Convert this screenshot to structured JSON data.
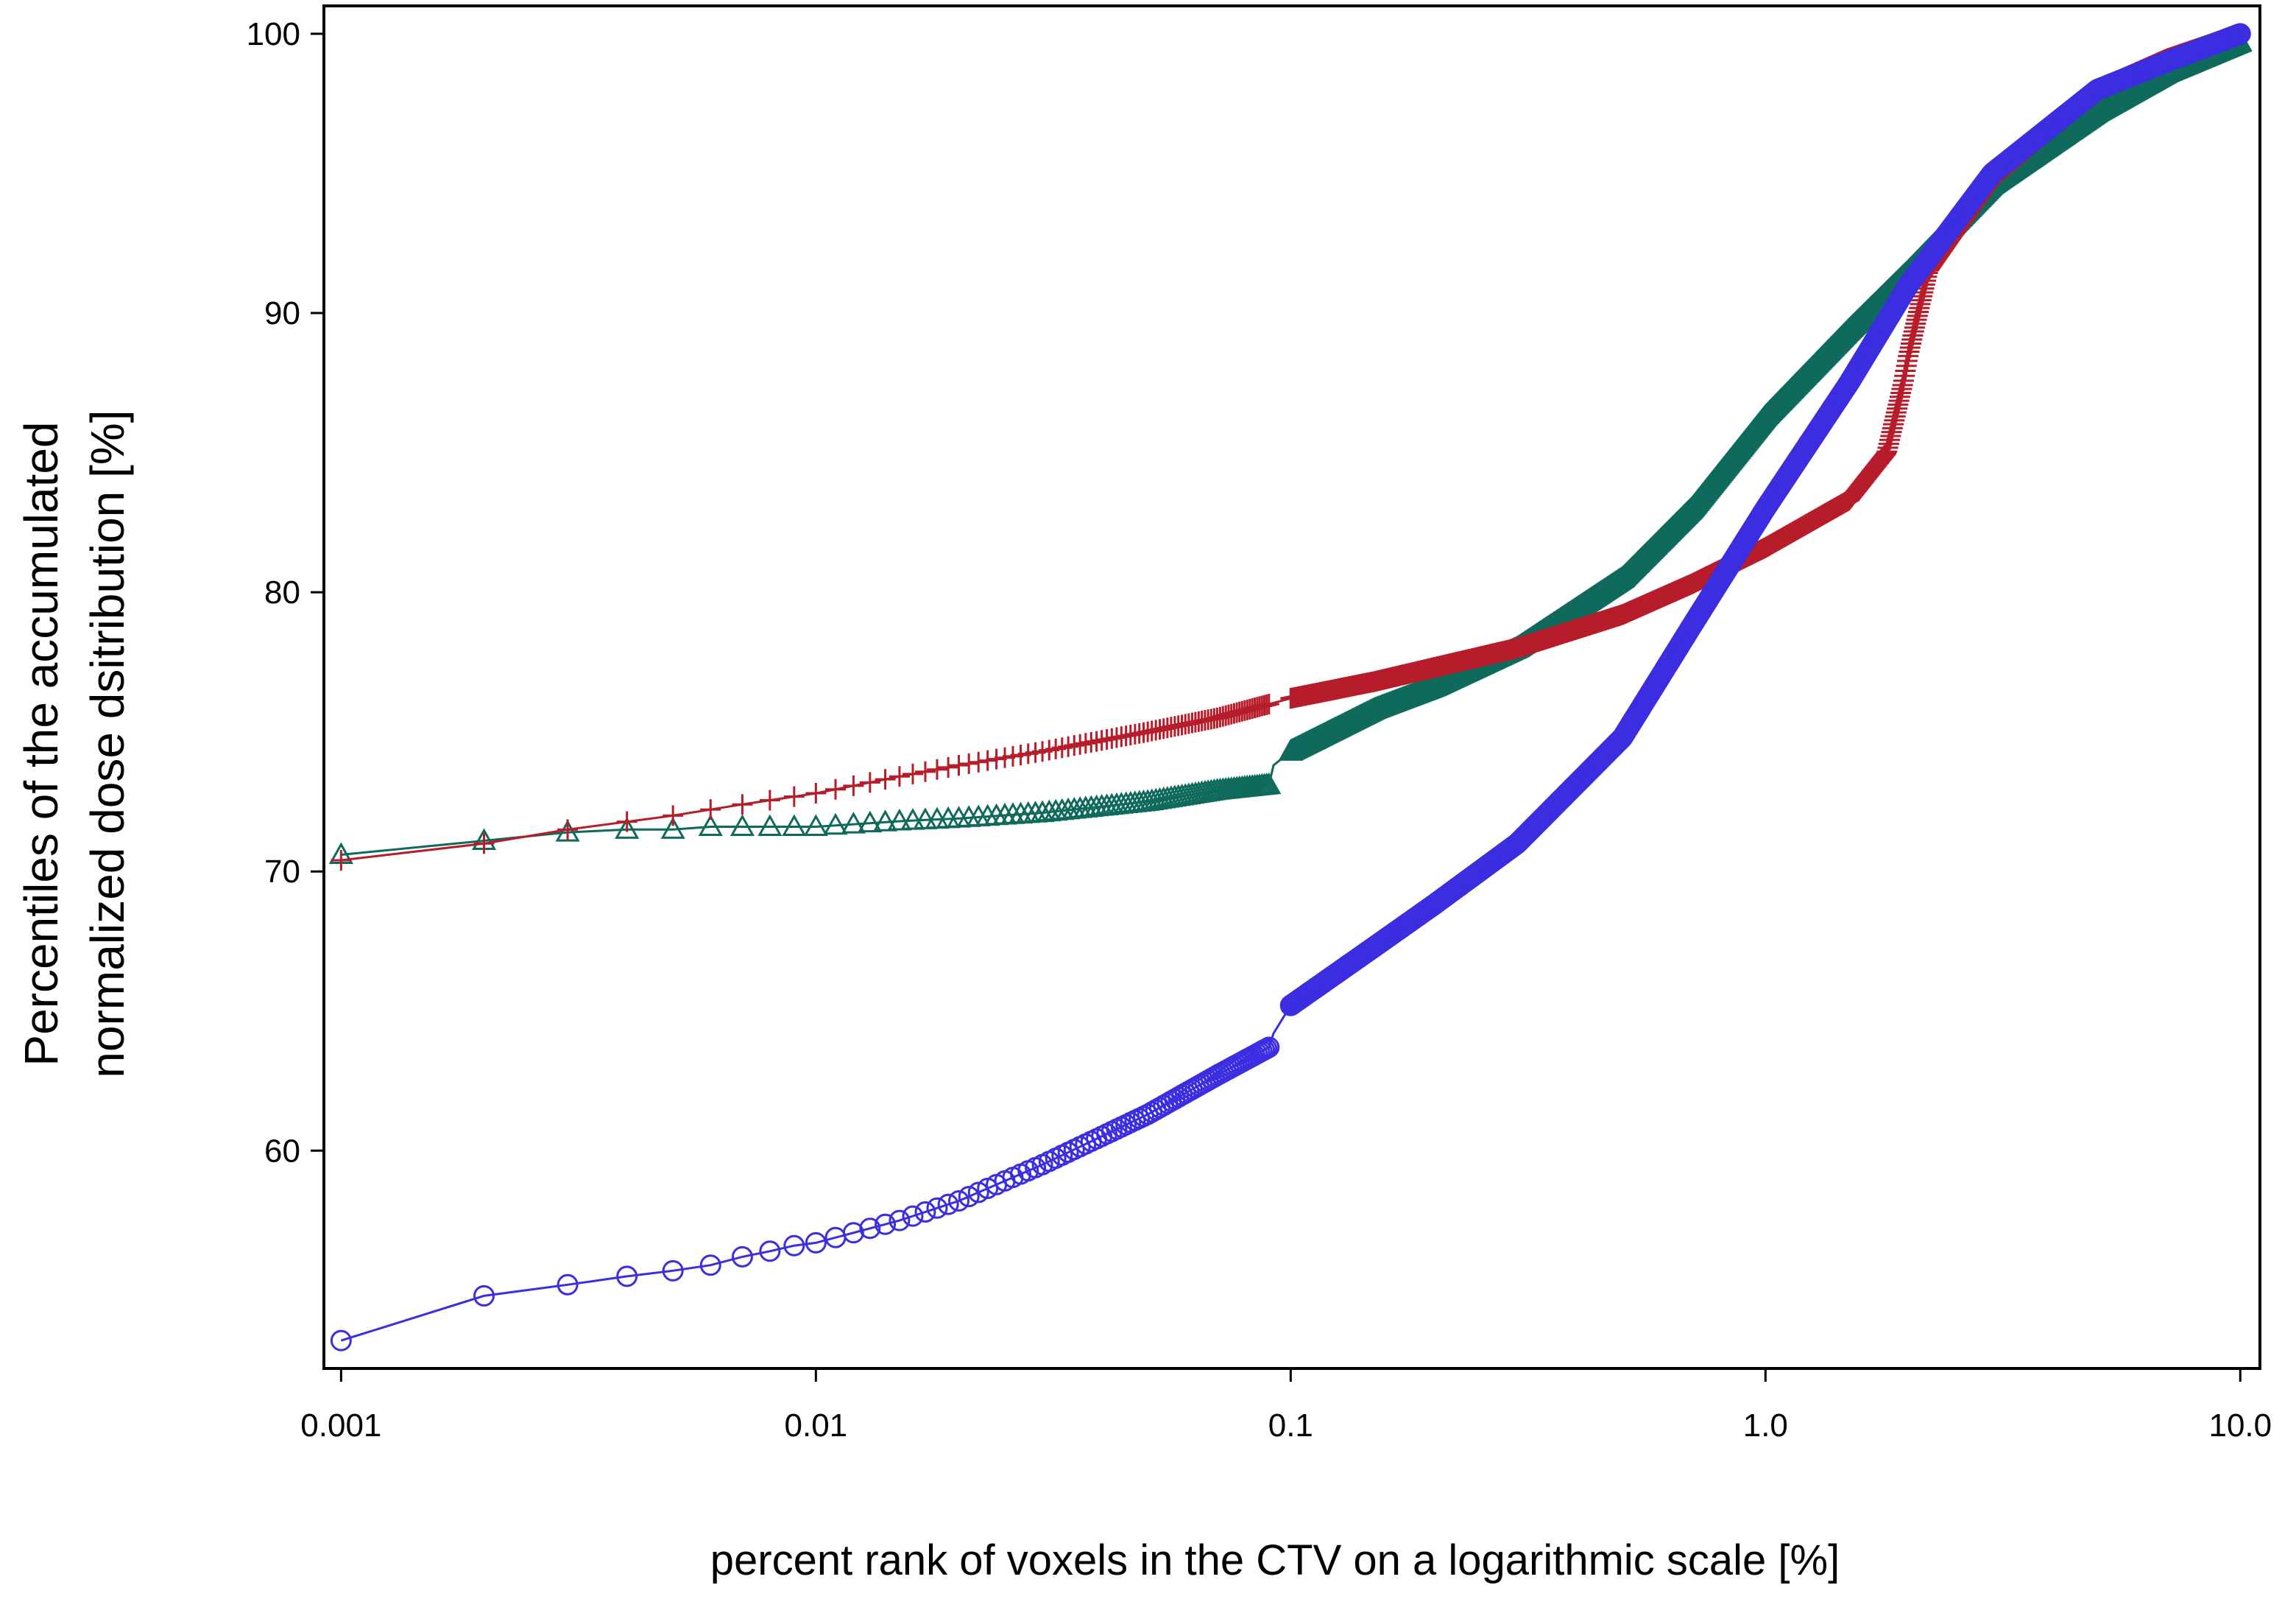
{
  "chart_data": {
    "type": "line",
    "xscale": "log",
    "xlabel": "percent rank of voxels in the CTV on a logarithmic scale [%]",
    "ylabel_lines": [
      "Percentiles of the accumulated",
      "normalized dose dsitribution [%]"
    ],
    "x_ticks": [
      0.001,
      0.01,
      0.1,
      1.0,
      10.0
    ],
    "x_tick_labels": [
      "0.001",
      "0.01",
      "0.1",
      "1.0",
      "10.0"
    ],
    "y_ticks": [
      60,
      70,
      80,
      90,
      100
    ],
    "y_tick_labels": [
      "60",
      "70",
      "80",
      "90",
      "100"
    ],
    "xlim": [
      0.00092,
      11.0
    ],
    "ylim": [
      52.2,
      101.0
    ],
    "grid": false,
    "series": [
      {
        "color": "#3a2ee0",
        "marker": "circle",
        "x": [
          0.001,
          0.002,
          0.003,
          0.004,
          0.005,
          0.006,
          0.007,
          0.008,
          0.009,
          0.01,
          0.015,
          0.02,
          0.03,
          0.05,
          0.07,
          0.09,
          0.092,
          0.1,
          0.15,
          0.2,
          0.3,
          0.5,
          0.7,
          1.0,
          1.5,
          2.0,
          3.0,
          5.0,
          7.0,
          10.0
        ],
        "y": [
          53.2,
          54.8,
          55.2,
          55.5,
          55.7,
          55.9,
          56.2,
          56.4,
          56.6,
          56.7,
          57.5,
          58.2,
          59.5,
          61.3,
          62.7,
          63.7,
          64.2,
          65.2,
          67.3,
          68.8,
          71.0,
          74.8,
          78.8,
          83.0,
          87.5,
          91.0,
          95.0,
          98.0,
          99.0,
          100.0
        ]
      },
      {
        "color": "#b71c2a",
        "marker": "plus",
        "x": [
          0.001,
          0.002,
          0.003,
          0.005,
          0.007,
          0.01,
          0.015,
          0.02,
          0.03,
          0.05,
          0.07,
          0.1,
          0.15,
          0.2,
          0.3,
          0.5,
          0.7,
          1.0,
          1.5,
          1.8,
          1.95,
          2.0,
          2.05,
          2.2,
          3.0,
          5.0,
          7.0,
          10.0
        ],
        "y": [
          70.4,
          71.0,
          71.5,
          72.0,
          72.4,
          72.8,
          73.4,
          73.8,
          74.3,
          75.0,
          75.5,
          76.2,
          76.8,
          77.3,
          78.0,
          79.2,
          80.3,
          81.6,
          83.3,
          85.0,
          87.5,
          88.5,
          89.3,
          91.5,
          94.8,
          98.0,
          99.1,
          100.0
        ]
      },
      {
        "color": "#0f6a5c",
        "marker": "triangle",
        "x": [
          0.001,
          0.002,
          0.003,
          0.004,
          0.005,
          0.006,
          0.007,
          0.008,
          0.009,
          0.01,
          0.015,
          0.02,
          0.03,
          0.05,
          0.07,
          0.09,
          0.092,
          0.1,
          0.15,
          0.2,
          0.3,
          0.5,
          0.7,
          1.0,
          1.5,
          2.0,
          3.0,
          5.0,
          7.0,
          10.0
        ],
        "y": [
          70.6,
          71.1,
          71.4,
          71.5,
          71.5,
          71.6,
          71.6,
          71.6,
          71.6,
          71.6,
          71.8,
          71.9,
          72.1,
          72.5,
          72.9,
          73.1,
          73.8,
          74.3,
          75.8,
          76.6,
          78.0,
          80.5,
          83.0,
          86.3,
          89.4,
          91.5,
          94.6,
          97.2,
          98.6,
          99.7
        ]
      }
    ]
  }
}
